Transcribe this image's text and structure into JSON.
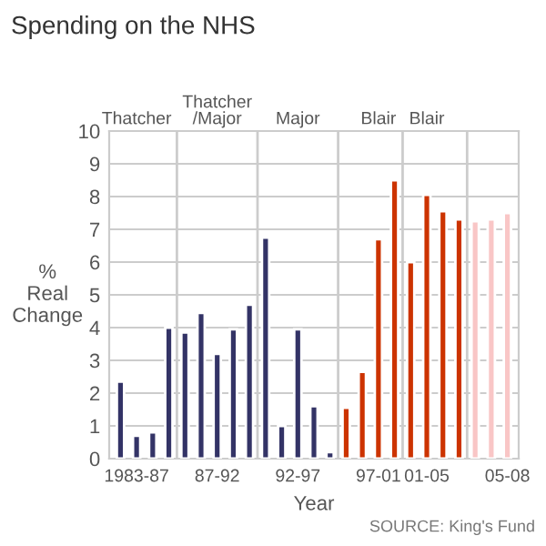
{
  "chart_data": {
    "type": "bar",
    "title": "Spending on the NHS",
    "xlabel": "Year",
    "ylabel": "%\nReal\nChange",
    "categories": [
      null,
      "1983-87",
      null,
      null,
      null,
      null,
      "87-92",
      null,
      null,
      null,
      null,
      "92-97",
      null,
      null,
      null,
      null,
      "97-01",
      null,
      null,
      "01-05",
      null,
      null,
      null,
      null,
      "05-08"
    ],
    "values": [
      2.35,
      0.7,
      0.8,
      4.0,
      3.85,
      4.45,
      3.2,
      3.95,
      4.7,
      6.75,
      1.0,
      3.95,
      1.6,
      0.2,
      1.55,
      2.65,
      6.7,
      8.5,
      6.0,
      8.05,
      7.55,
      7.3,
      7.25,
      7.3,
      7.5
    ],
    "colors": [
      "#333366",
      "#333366",
      "#333366",
      "#333366",
      "#333366",
      "#333366",
      "#333366",
      "#333366",
      "#333366",
      "#333366",
      "#333366",
      "#333366",
      "#333366",
      "#333366",
      "#cc3300",
      "#cc3300",
      "#cc3300",
      "#cc3300",
      "#cc3300",
      "#cc3300",
      "#cc3300",
      "#cc3300",
      "#f9c6c6",
      "#f9c6c6",
      "#f9c6c6"
    ],
    "ylim": [
      0,
      10
    ],
    "yticks": [
      0,
      1,
      2,
      3,
      4,
      5,
      6,
      7,
      8,
      9,
      10
    ],
    "grid": "y",
    "annotations": [
      "Thatcher",
      "Thatcher\n/Major",
      "Major",
      "Blair",
      "Blair",
      "SOURCE: King's Fund"
    ]
  }
}
